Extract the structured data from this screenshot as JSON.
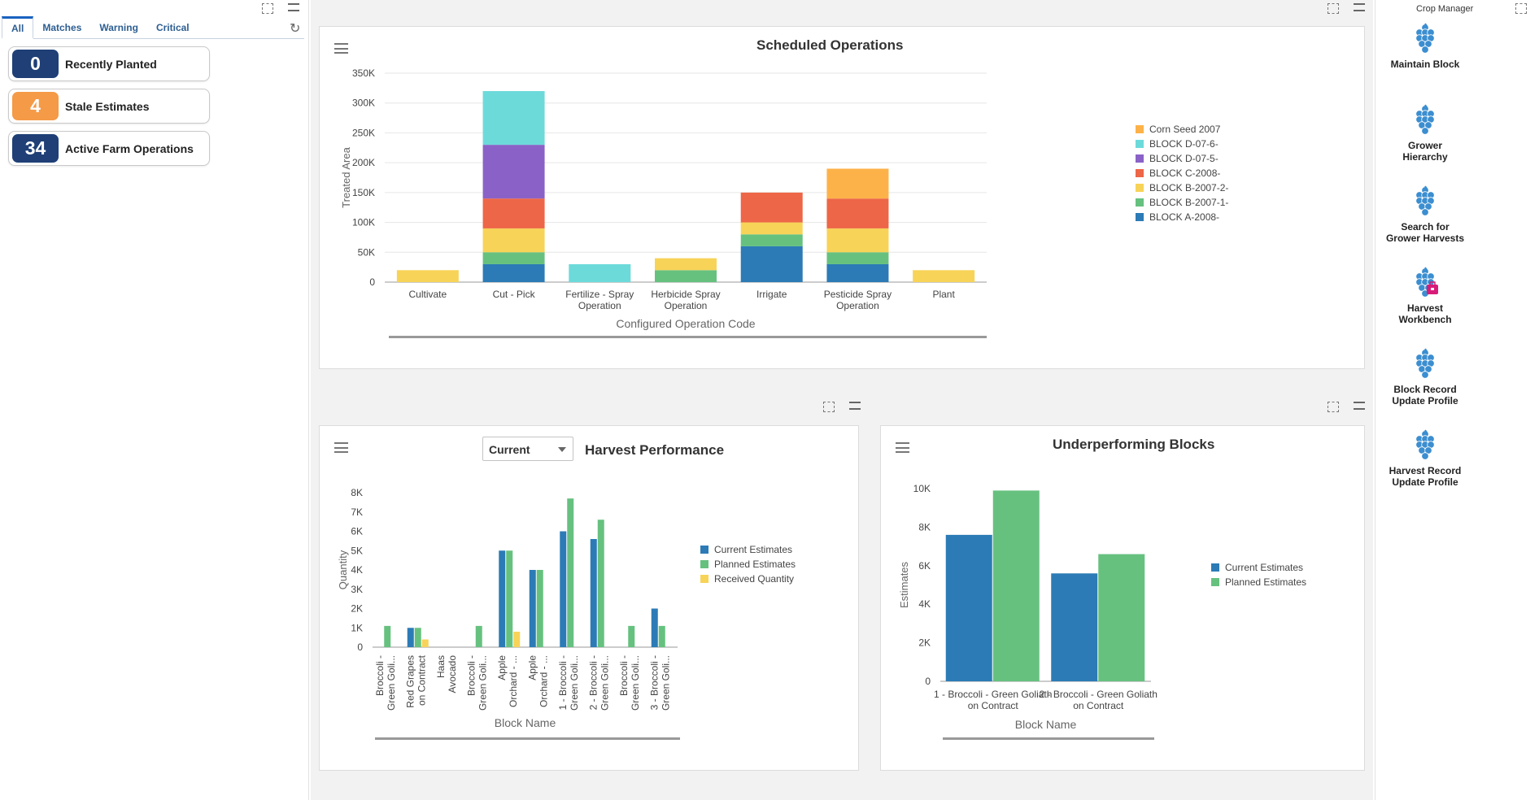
{
  "left": {
    "tabs": [
      {
        "label": "All"
      },
      {
        "label": "Matches"
      },
      {
        "label": "Warning"
      },
      {
        "label": "Critical"
      }
    ],
    "tiles": [
      {
        "count": "0",
        "label": "Recently Planted",
        "color": "#1f3f76"
      },
      {
        "count": "4",
        "label": "Stale Estimates",
        "color": "#f59a46"
      },
      {
        "count": "34",
        "label": "Active Farm Operations",
        "color": "#1f3f76"
      }
    ]
  },
  "right": {
    "title": "Crop Manager",
    "apps": [
      {
        "line1": "Maintain Block",
        "line2": ""
      },
      {
        "line1": "Grower",
        "line2": "Hierarchy"
      },
      {
        "line1": "Search for",
        "line2": "Grower Harvests"
      },
      {
        "line1": "Harvest",
        "line2": "Workbench"
      },
      {
        "line1": "Block Record",
        "line2": "Update Profile"
      },
      {
        "line1": "Harvest Record",
        "line2": "Update Profile"
      }
    ]
  },
  "harvest": {
    "period": "Current"
  },
  "chart_data": [
    {
      "type": "bar",
      "stacked": true,
      "title": "Scheduled Operations",
      "xlabel": "Configured Operation Code",
      "ylabel": "Treated Area",
      "ylim": [
        0,
        350000
      ],
      "yticks": [
        "0",
        "50K",
        "100K",
        "150K",
        "200K",
        "250K",
        "300K",
        "350K"
      ],
      "categories": [
        "Cultivate",
        "Cut - Pick",
        "Fertilize - Spray Operation",
        "Herbicide Spray Operation",
        "Irrigate",
        "Pesticide Spray Operation",
        "Plant"
      ],
      "series": [
        {
          "name": "BLOCK A-2008-",
          "color": "#2c7bb6",
          "values": [
            0,
            30000,
            0,
            0,
            60000,
            30000,
            0
          ]
        },
        {
          "name": "BLOCK B-2007-1-",
          "color": "#66c17f",
          "values": [
            0,
            20000,
            0,
            20000,
            20000,
            20000,
            0
          ]
        },
        {
          "name": "BLOCK B-2007-2-",
          "color": "#f7d358",
          "values": [
            20000,
            40000,
            0,
            20000,
            20000,
            40000,
            20000
          ]
        },
        {
          "name": "BLOCK C-2008-",
          "color": "#ed6647",
          "values": [
            0,
            50000,
            0,
            0,
            50000,
            50000,
            0
          ]
        },
        {
          "name": "BLOCK D-07-5-",
          "color": "#8a62c7",
          "values": [
            0,
            90000,
            0,
            0,
            0,
            0,
            0
          ]
        },
        {
          "name": "BLOCK D-07-6-",
          "color": "#6ddada",
          "values": [
            0,
            90000,
            30000,
            0,
            0,
            0,
            0
          ]
        },
        {
          "name": "Corn Seed 2007",
          "color": "#fdb249",
          "values": [
            0,
            0,
            0,
            0,
            0,
            50000,
            0
          ]
        }
      ]
    },
    {
      "type": "bar",
      "title": "Harvest Performance",
      "xlabel": "Block Name",
      "ylabel": "Quantity",
      "ylim": [
        0,
        8000
      ],
      "yticks": [
        "0",
        "1K",
        "2K",
        "3K",
        "4K",
        "5K",
        "6K",
        "7K",
        "8K"
      ],
      "categories": [
        [
          "Broccoli -",
          "Green Goli..."
        ],
        [
          "Red Grapes",
          "on Contract"
        ],
        [
          "Haas",
          "Avocado"
        ],
        [
          "Broccoli -",
          "Green Goli..."
        ],
        [
          "Apple",
          "Orchard - ..."
        ],
        [
          "Apple",
          "Orchard - ..."
        ],
        [
          "1 - Broccoli -",
          "Green Goli..."
        ],
        [
          "2 - Broccoli -",
          "Green Goli..."
        ],
        [
          "Broccoli -",
          "Green Goli..."
        ],
        [
          "3 - Broccoli -",
          "Green Goli..."
        ]
      ],
      "series": [
        {
          "name": "Current Estimates",
          "color": "#2c7bb6",
          "values": [
            0,
            1000,
            0,
            0,
            5000,
            4000,
            6000,
            5600,
            0,
            2000
          ]
        },
        {
          "name": "Planned Estimates",
          "color": "#66c17f",
          "values": [
            1100,
            1000,
            0,
            1100,
            5000,
            4000,
            7700,
            6600,
            1100,
            1100
          ]
        },
        {
          "name": "Received Quantity",
          "color": "#f7d358",
          "values": [
            0,
            400,
            0,
            0,
            800,
            0,
            0,
            0,
            0,
            0
          ]
        }
      ]
    },
    {
      "type": "bar",
      "title": "Underperforming Blocks",
      "xlabel": "Block Name",
      "ylabel": "Estimates",
      "ylim": [
        0,
        10000
      ],
      "yticks": [
        "0",
        "2K",
        "4K",
        "6K",
        "8K",
        "10K"
      ],
      "categories": [
        [
          "1 - Broccoli - Green Goliath",
          "on Contract"
        ],
        [
          "2 - Broccoli - Green Goliath",
          "on Contract"
        ]
      ],
      "series": [
        {
          "name": "Current Estimates",
          "color": "#2c7bb6",
          "values": [
            7600,
            5600
          ]
        },
        {
          "name": "Planned Estimates",
          "color": "#66c17f",
          "values": [
            9900,
            6600
          ]
        }
      ]
    }
  ]
}
